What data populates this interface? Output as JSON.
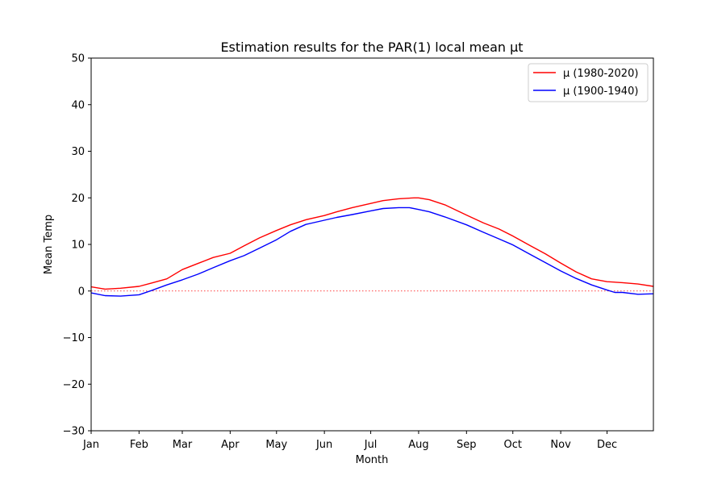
{
  "chart_data": {
    "type": "line",
    "title": "Estimation results for the PAR(1) local mean μt",
    "xlabel": "Month",
    "ylabel": "Mean Temp",
    "xlim": [
      1,
      365
    ],
    "ylim": [
      -30,
      50
    ],
    "yticks": [
      -30,
      -20,
      -10,
      0,
      10,
      20,
      30,
      40,
      50
    ],
    "ytick_labels": [
      "−30",
      "−20",
      "−10",
      "0",
      "10",
      "20",
      "30",
      "40",
      "50"
    ],
    "xticks": [
      {
        "label": "Jan",
        "day": 1
      },
      {
        "label": "Feb",
        "day": 32
      },
      {
        "label": "Mar",
        "day": 60
      },
      {
        "label": "Apr",
        "day": 91
      },
      {
        "label": "May",
        "day": 121
      },
      {
        "label": "Jun",
        "day": 152
      },
      {
        "label": "Jul",
        "day": 182
      },
      {
        "label": "Aug",
        "day": 213
      },
      {
        "label": "Sep",
        "day": 244
      },
      {
        "label": "Oct",
        "day": 274
      },
      {
        "label": "Nov",
        "day": 305
      },
      {
        "label": "Dec",
        "day": 335
      }
    ],
    "reference_line": {
      "y": 0,
      "color": "#ff0000",
      "style": "dotted"
    },
    "legend_position": "top-right",
    "grid": false,
    "series": [
      {
        "name": "μ (1980-2020)",
        "color": "#ff0000",
        "x": [
          1,
          10,
          20,
          32,
          40,
          50,
          60,
          70,
          80,
          91,
          100,
          110,
          121,
          130,
          140,
          152,
          160,
          170,
          182,
          190,
          200,
          210,
          213,
          220,
          230,
          244,
          255,
          265,
          274,
          285,
          295,
          305,
          315,
          325,
          335,
          345,
          355,
          365
        ],
        "y": [
          0.9,
          0.4,
          0.6,
          1.0,
          1.7,
          2.6,
          4.6,
          5.9,
          7.2,
          8.1,
          9.7,
          11.4,
          13.0,
          14.2,
          15.3,
          16.2,
          17.0,
          17.9,
          18.8,
          19.4,
          19.8,
          20.0,
          20.0,
          19.6,
          18.5,
          16.3,
          14.6,
          13.3,
          11.8,
          9.8,
          8.0,
          6.0,
          4.1,
          2.6,
          2.0,
          1.8,
          1.5,
          1.0
        ]
      },
      {
        "name": "μ (1900-1940)",
        "color": "#0000ff",
        "x": [
          1,
          10,
          20,
          32,
          40,
          50,
          60,
          70,
          80,
          91,
          100,
          110,
          121,
          130,
          140,
          152,
          160,
          170,
          182,
          190,
          200,
          207,
          213,
          220,
          230,
          244,
          255,
          265,
          274,
          285,
          295,
          305,
          315,
          325,
          335,
          340,
          345,
          355,
          365
        ],
        "y": [
          -0.4,
          -1.0,
          -1.1,
          -0.8,
          0.1,
          1.3,
          2.4,
          3.6,
          5.0,
          6.5,
          7.6,
          9.2,
          11.0,
          12.8,
          14.3,
          15.2,
          15.8,
          16.4,
          17.2,
          17.7,
          17.9,
          17.9,
          17.5,
          17.0,
          15.9,
          14.2,
          12.6,
          11.2,
          9.9,
          7.9,
          6.1,
          4.3,
          2.7,
          1.3,
          0.2,
          -0.3,
          -0.3,
          -0.7,
          -0.6
        ]
      }
    ]
  }
}
